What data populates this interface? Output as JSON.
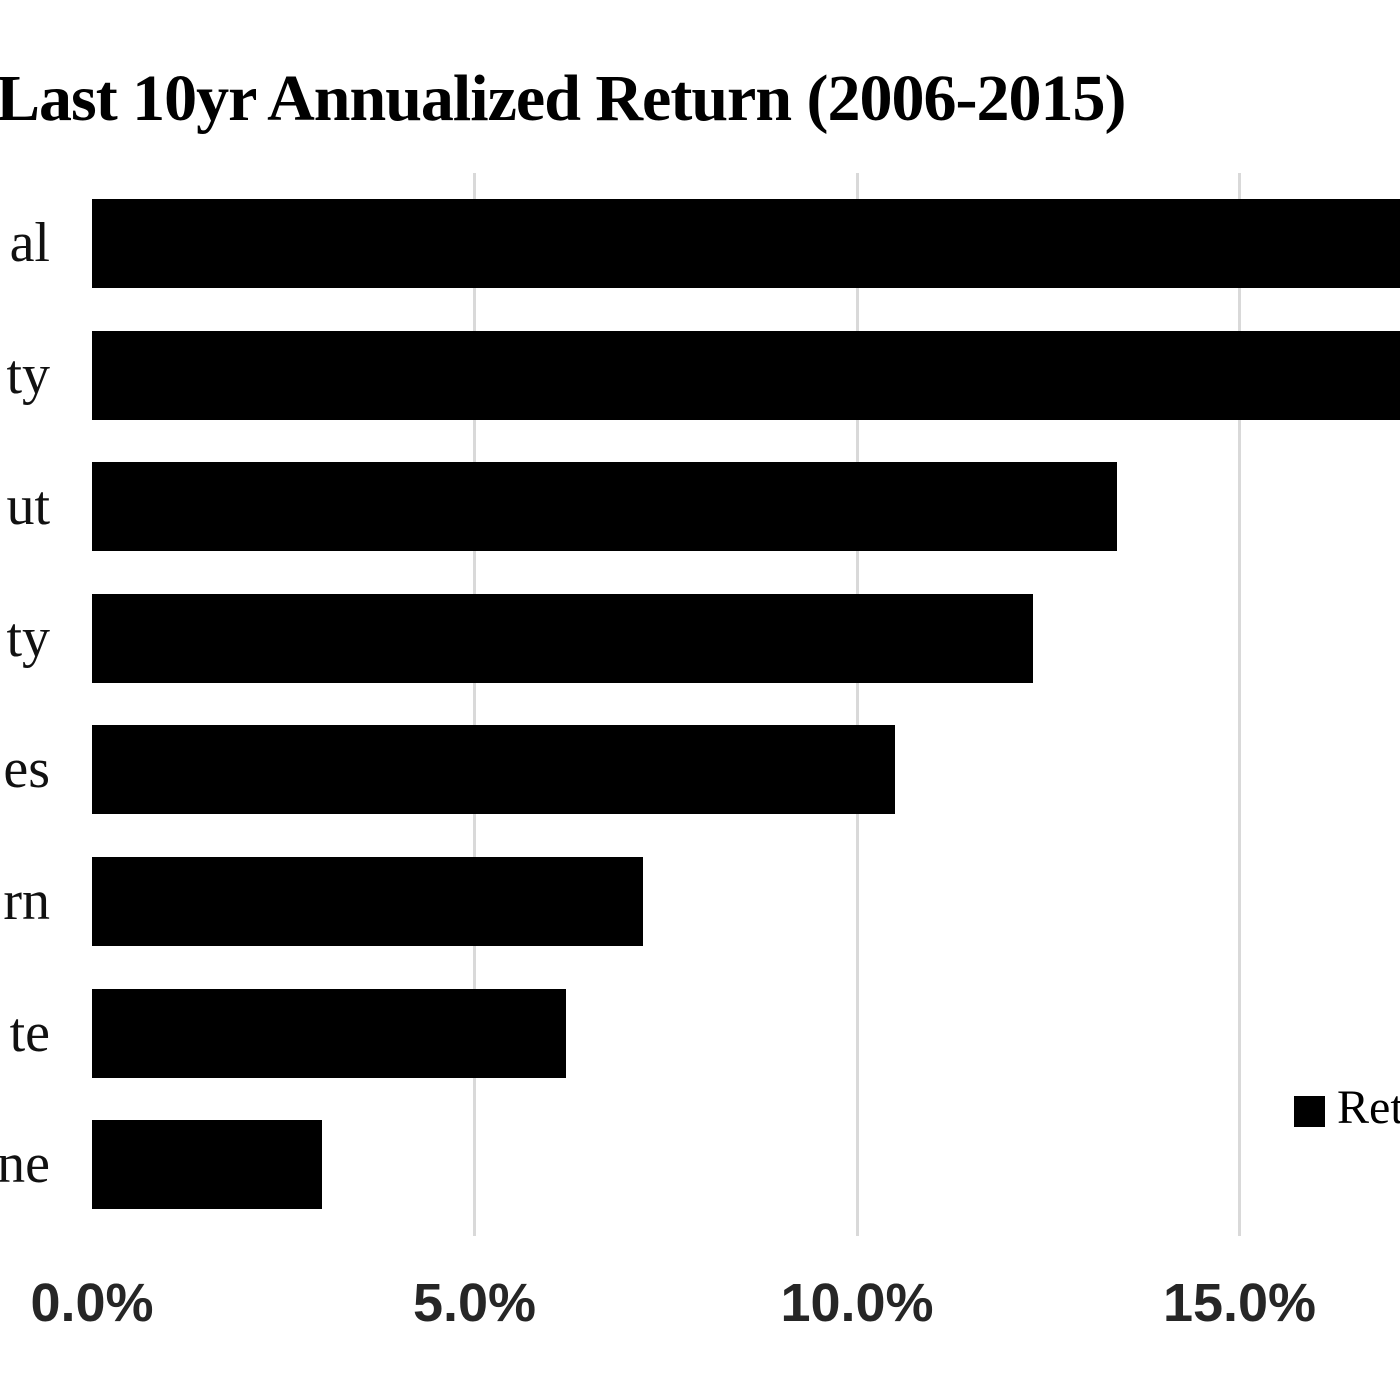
{
  "title": "Last 10yr Annualized Return (2006-2015)",
  "legend": {
    "label": "Ret",
    "marker_color": "#000000",
    "position": "bottom-right",
    "clipped_at_right_edge": true
  },
  "colors": {
    "background": "#ffffff",
    "bar": "#000000",
    "gridline": "#d9d9d9",
    "title_text": "#000000",
    "axis_tick_text": "#262626",
    "category_text": "#111111"
  },
  "x_axis": {
    "tick_labels": [
      "0.0%",
      "5.0%",
      "10.0%",
      "15.0%"
    ],
    "tick_values": [
      0,
      5,
      10,
      15
    ]
  },
  "y_axis": {
    "visible_label_fragments": [
      "al",
      "ty",
      "ut",
      "ty",
      "es",
      "rn",
      "te",
      "ne"
    ],
    "note": "category labels are cropped at the left edge of the screenshot; only trailing letters are visible"
  },
  "chart_data": {
    "type": "bar",
    "orientation": "horizontal",
    "title": "Last 10yr Annualized Return (2006-2015)",
    "categories": [
      "al",
      "ty",
      "ut",
      "ty",
      "es",
      "rn",
      "te",
      "ne"
    ],
    "series": [
      {
        "name": "Ret",
        "values": [
          17.5,
          17.4,
          13.4,
          12.3,
          10.5,
          7.2,
          6.2,
          3.0
        ]
      }
    ],
    "values_unit": "percent",
    "bars_clipped_at_right_edge": [
      true,
      true,
      false,
      false,
      false,
      false,
      false,
      false
    ],
    "xlim": [
      0,
      17.1
    ],
    "x_tick_interval": 5,
    "grid": "vertical gridlines at 5.0%, 10.0%, 15.0% only; no axis line at 0%",
    "legend_position": "bottom-right",
    "bar_color": "#000000"
  }
}
